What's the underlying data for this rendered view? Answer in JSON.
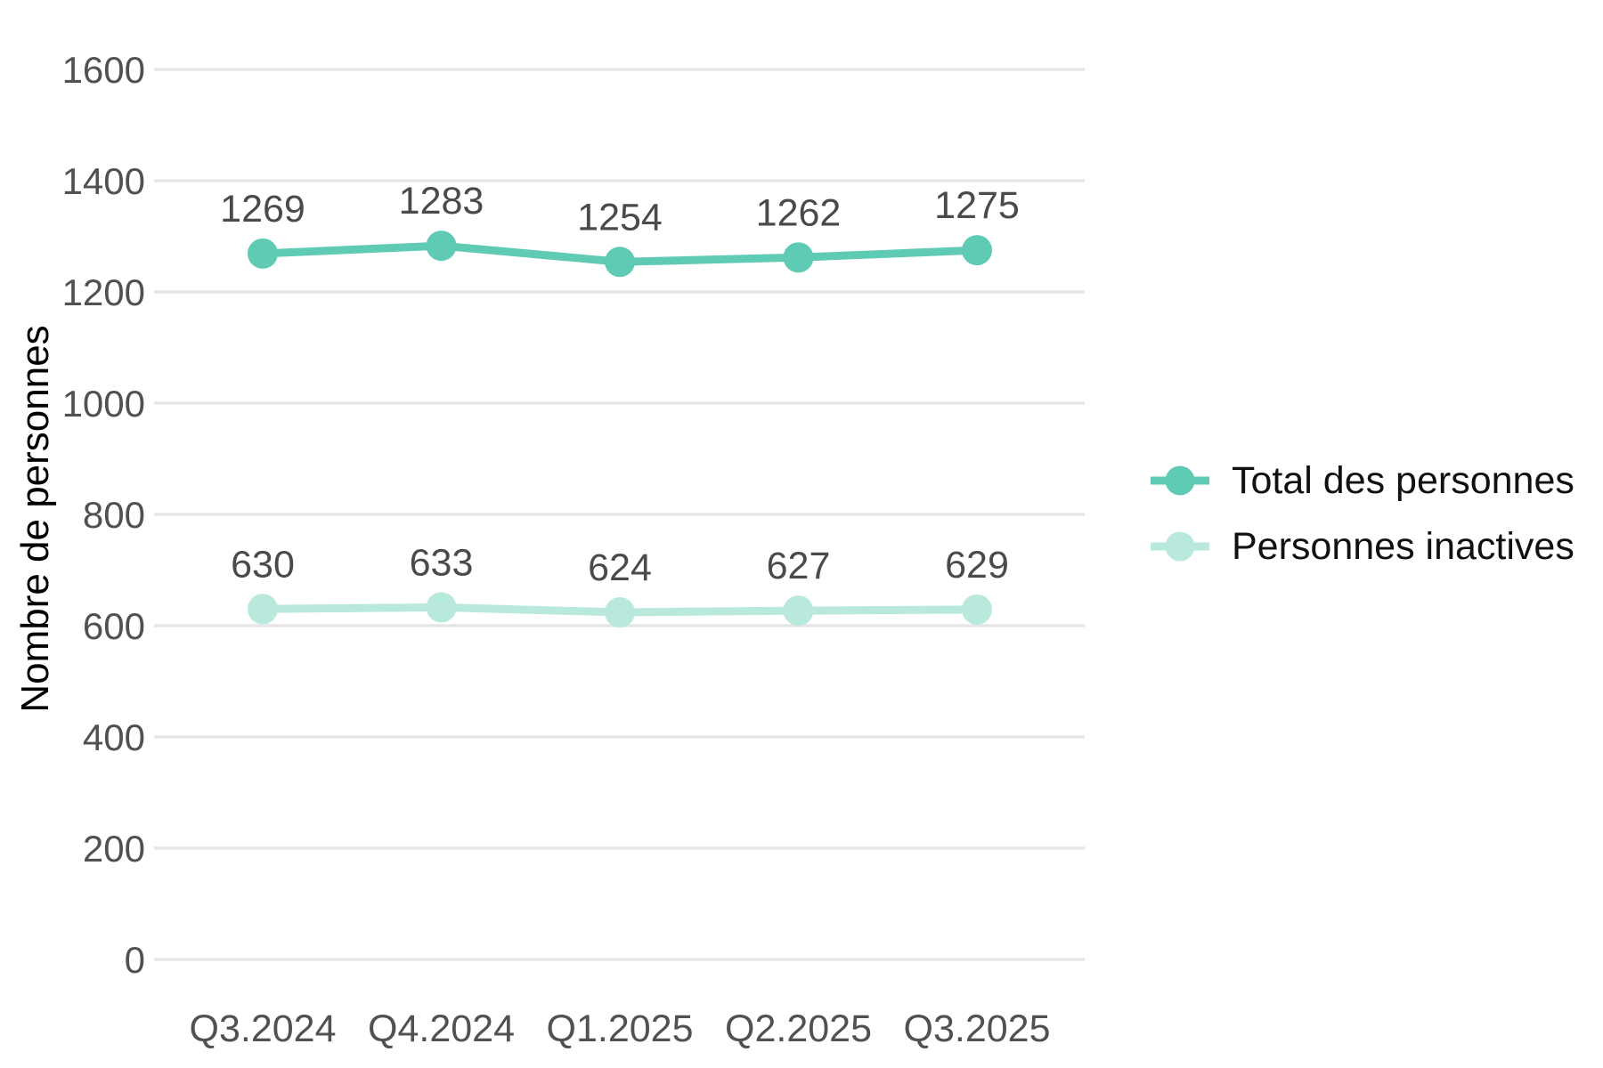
{
  "chart_data": {
    "type": "line",
    "title": "",
    "xlabel": "",
    "ylabel": "Nombre de personnes",
    "categories": [
      "Q3.2024",
      "Q4.2024",
      "Q1.2025",
      "Q2.2025",
      "Q3.2025"
    ],
    "series": [
      {
        "name": "Total des personnes",
        "values": [
          1269,
          1283,
          1254,
          1262,
          1275
        ],
        "color": "#5FCBB5"
      },
      {
        "name": "Personnes inactives",
        "values": [
          630,
          633,
          624,
          627,
          629
        ],
        "color": "#B9E8DD"
      }
    ],
    "y_ticks": [
      0,
      200,
      400,
      600,
      800,
      1000,
      1200,
      1400,
      1600
    ],
    "ylim": [
      0,
      1600
    ],
    "grid": true,
    "legend_position": "right",
    "data_labels": true,
    "colors": {
      "gridline": "#e6e6e6",
      "tick_text": "#515151",
      "data_label_text": "#4a4a4a",
      "axis_title_text": "#000000",
      "legend_text": "#111111",
      "background": "#ffffff"
    }
  }
}
